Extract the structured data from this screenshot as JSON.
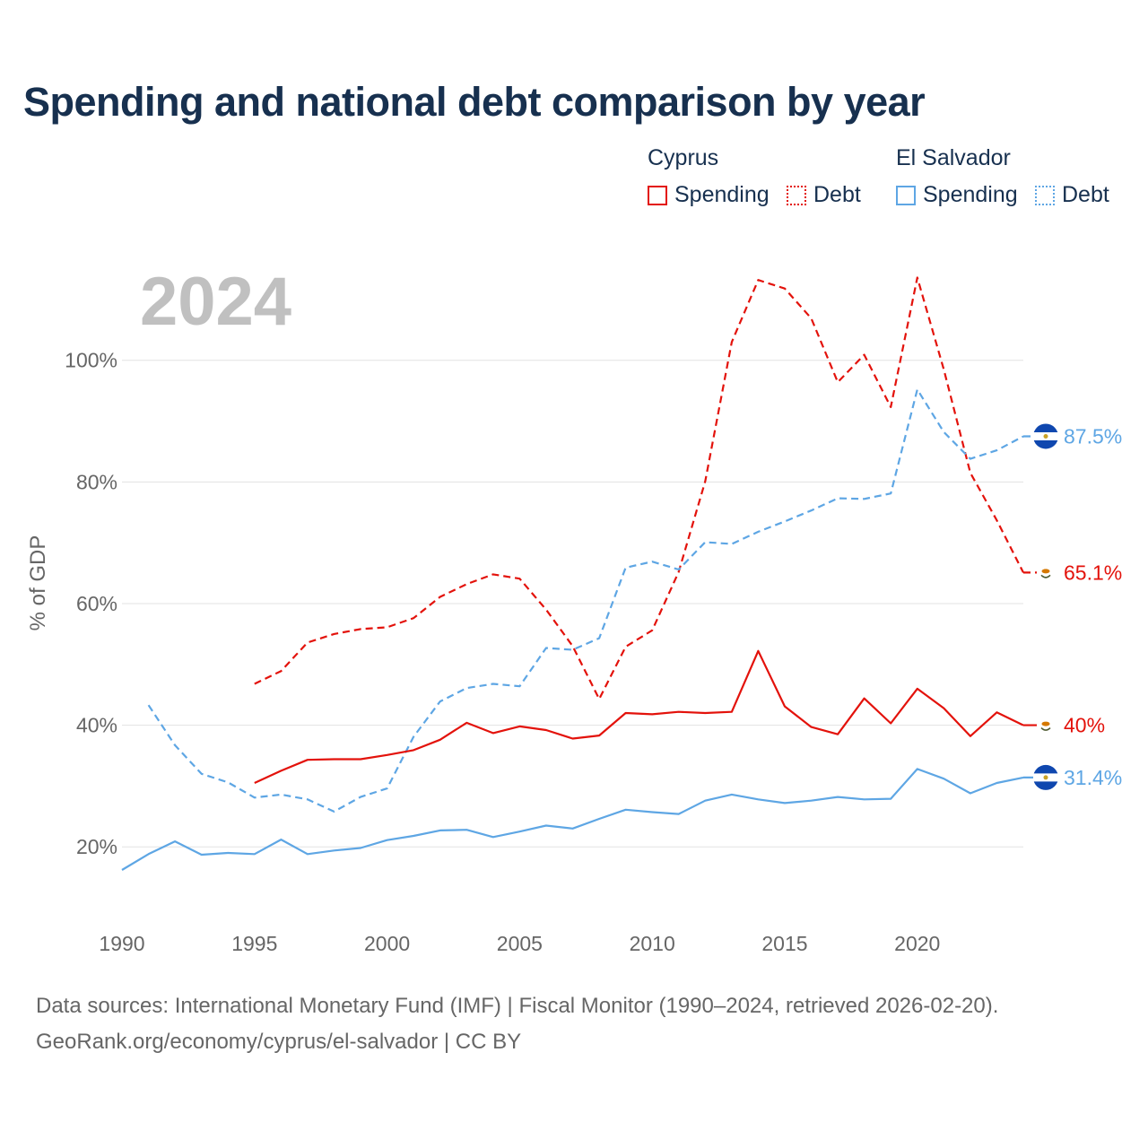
{
  "title": "Spending and national debt comparison by year",
  "legend": {
    "groups": [
      {
        "country": "Cyprus",
        "items": [
          {
            "label": "Spending",
            "color": "#e3120b",
            "style": "solid"
          },
          {
            "label": "Debt",
            "color": "#e3120b",
            "style": "dotted"
          }
        ]
      },
      {
        "country": "El Salvador",
        "items": [
          {
            "label": "Spending",
            "color": "#5ea6e4",
            "style": "solid"
          },
          {
            "label": "Debt",
            "color": "#5ea6e4",
            "style": "dotted"
          }
        ]
      }
    ]
  },
  "chart_data": {
    "type": "line",
    "year_label": "2024",
    "ylabel": "% of GDP",
    "ylim": [
      10,
      115
    ],
    "xlim": [
      1990,
      2024
    ],
    "yticks": [
      {
        "value": 20,
        "label": "20%"
      },
      {
        "value": 40,
        "label": "40%"
      },
      {
        "value": 60,
        "label": "60%"
      },
      {
        "value": 80,
        "label": "80%"
      },
      {
        "value": 100,
        "label": "100%"
      }
    ],
    "xticks": [
      {
        "value": 1990,
        "label": "1990"
      },
      {
        "value": 1995,
        "label": "1995"
      },
      {
        "value": 2000,
        "label": "2000"
      },
      {
        "value": 2005,
        "label": "2005"
      },
      {
        "value": 2010,
        "label": "2010"
      },
      {
        "value": 2015,
        "label": "2015"
      },
      {
        "value": 2020,
        "label": "2020"
      }
    ],
    "series": [
      {
        "name": "Cyprus Debt",
        "country": "Cyprus",
        "metric": "Debt",
        "color": "#e3120b",
        "dashed": true,
        "end_label": "65.1%",
        "x": [
          1995,
          1996,
          1997,
          1998,
          1999,
          2000,
          2001,
          2002,
          2003,
          2004,
          2005,
          2006,
          2007,
          2008,
          2009,
          2010,
          2011,
          2012,
          2013,
          2014,
          2015,
          2016,
          2017,
          2018,
          2019,
          2020,
          2021,
          2022,
          2023,
          2024
        ],
        "values": [
          46.8,
          48.9,
          53.6,
          55.0,
          55.8,
          56.1,
          57.6,
          61.1,
          63.2,
          64.8,
          64.1,
          59.0,
          53.0,
          44.3,
          52.9,
          55.6,
          65.2,
          80.1,
          103.0,
          113.2,
          111.8,
          106.9,
          96.4,
          100.9,
          92.3,
          113.6,
          98.5,
          81.5,
          73.7,
          65.1
        ]
      },
      {
        "name": "El Salvador Debt",
        "country": "El Salvador",
        "metric": "Debt",
        "color": "#5ea6e4",
        "dashed": true,
        "end_label": "87.5%",
        "x": [
          1991,
          1992,
          1993,
          1994,
          1995,
          1996,
          1997,
          1998,
          1999,
          2000,
          2001,
          2002,
          2003,
          2004,
          2005,
          2006,
          2007,
          2008,
          2009,
          2010,
          2011,
          2012,
          2013,
          2014,
          2015,
          2016,
          2017,
          2018,
          2019,
          2020,
          2021,
          2022,
          2023,
          2024
        ],
        "values": [
          43.3,
          36.7,
          32.0,
          30.6,
          28.1,
          28.6,
          27.8,
          25.8,
          28.2,
          29.6,
          38.1,
          43.9,
          46.1,
          46.8,
          46.4,
          52.7,
          52.4,
          54.3,
          65.9,
          66.9,
          65.6,
          70.1,
          69.8,
          71.8,
          73.5,
          75.3,
          77.3,
          77.2,
          78.1,
          95.2,
          88.2,
          83.8,
          85.2,
          87.5
        ]
      },
      {
        "name": "Cyprus Spending",
        "country": "Cyprus",
        "metric": "Spending",
        "color": "#e3120b",
        "dashed": false,
        "end_label": "40%",
        "x": [
          1995,
          1996,
          1997,
          1998,
          1999,
          2000,
          2001,
          2002,
          2003,
          2004,
          2005,
          2006,
          2007,
          2008,
          2009,
          2010,
          2011,
          2012,
          2013,
          2014,
          2015,
          2016,
          2017,
          2018,
          2019,
          2020,
          2021,
          2022,
          2023,
          2024
        ],
        "values": [
          30.5,
          32.5,
          34.3,
          34.4,
          34.4,
          35.1,
          35.9,
          37.6,
          40.4,
          38.7,
          39.8,
          39.2,
          37.8,
          38.3,
          42.0,
          41.8,
          42.2,
          42.0,
          42.2,
          52.2,
          43.1,
          39.7,
          38.5,
          44.4,
          40.3,
          46.0,
          42.8,
          38.2,
          42.1,
          40.0
        ]
      },
      {
        "name": "El Salvador Spending",
        "country": "El Salvador",
        "metric": "Spending",
        "color": "#5ea6e4",
        "dashed": false,
        "end_label": "31.4%",
        "x": [
          1990,
          1991,
          1992,
          1993,
          1994,
          1995,
          1996,
          1997,
          1998,
          1999,
          2000,
          2001,
          2002,
          2003,
          2004,
          2005,
          2006,
          2007,
          2008,
          2009,
          2010,
          2011,
          2012,
          2013,
          2014,
          2015,
          2016,
          2017,
          2018,
          2019,
          2020,
          2021,
          2022,
          2023,
          2024
        ],
        "values": [
          16.2,
          18.8,
          20.9,
          18.7,
          19.0,
          18.8,
          21.2,
          18.8,
          19.4,
          19.8,
          21.1,
          21.8,
          22.7,
          22.8,
          21.6,
          22.5,
          23.5,
          23.0,
          24.6,
          26.1,
          25.7,
          25.4,
          27.6,
          28.6,
          27.8,
          27.2,
          27.6,
          28.2,
          27.8,
          27.9,
          32.8,
          31.2,
          28.8,
          30.5,
          31.4
        ]
      }
    ]
  },
  "footer": {
    "source_line": "Data sources: International Monetary Fund (IMF) | Fiscal Monitor (1990–2024, retrieved 2026-02-20).",
    "credit_line": "GeoRank.org/economy/cyprus/el-salvador | CC BY"
  }
}
